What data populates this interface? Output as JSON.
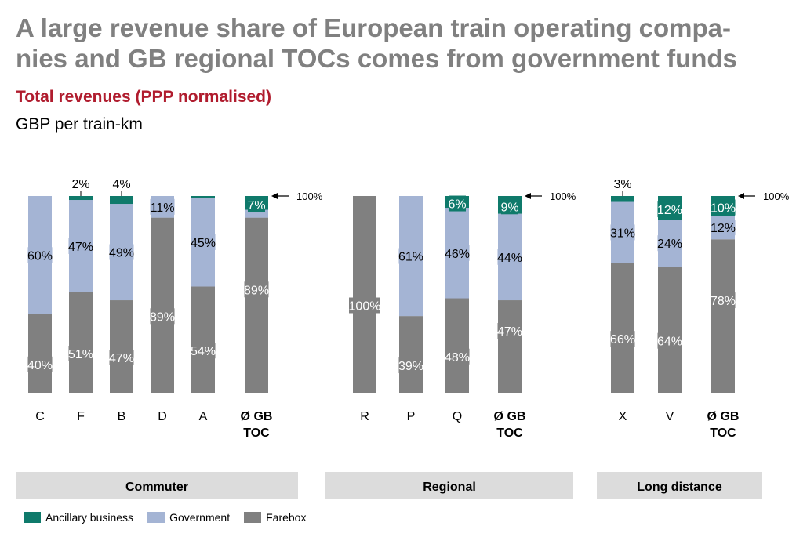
{
  "header": {
    "title": "A large revenue share of European train operating compa-nies and GB regional TOCs comes from government funds",
    "subtitle": "Total revenues (PPP normalised)",
    "unit": "GBP per train-km"
  },
  "colors": {
    "ancillary": "#0f7a6b",
    "government": "#a4b4d4",
    "farebox": "#808080"
  },
  "chart_data": {
    "type": "bar",
    "stacked": true,
    "percent": true,
    "series_order": [
      "Farebox",
      "Government",
      "Ancillary business"
    ],
    "groups": [
      {
        "name": "Commuter",
        "categories": [
          "C",
          "F",
          "B",
          "D",
          "A",
          "Ø GB TOC"
        ],
        "farebox": [
          40,
          51,
          47,
          89,
          54,
          89
        ],
        "government": [
          60,
          47,
          49,
          11,
          45,
          4
        ],
        "ancillary": [
          0,
          2,
          4,
          0,
          1,
          7
        ],
        "farebox_labels": [
          "40%",
          "51%",
          "47%",
          "89%",
          "54%",
          "89%"
        ],
        "government_labels": [
          "60%",
          "47%",
          "49%",
          "11%",
          "45%",
          ""
        ],
        "ancillary_labels": [
          "",
          "2%",
          "4%",
          "",
          "",
          "7%"
        ]
      },
      {
        "name": "Regional",
        "categories": [
          "R",
          "P",
          "Q",
          "Ø GB TOC"
        ],
        "farebox": [
          100,
          39,
          48,
          47
        ],
        "government": [
          0,
          61,
          46,
          44
        ],
        "ancillary": [
          0,
          0,
          6,
          9
        ],
        "farebox_labels": [
          "100%",
          "39%",
          "48%",
          "47%"
        ],
        "government_labels": [
          "",
          "61%",
          "46%",
          "44%"
        ],
        "ancillary_labels": [
          "",
          "",
          "6%",
          "9%"
        ]
      },
      {
        "name": "Long distance",
        "categories": [
          "X",
          "V",
          "Ø GB TOC"
        ],
        "farebox": [
          66,
          64,
          78
        ],
        "government": [
          31,
          24,
          12
        ],
        "ancillary": [
          3,
          12,
          10
        ],
        "farebox_labels": [
          "66%",
          "64%",
          "78%"
        ],
        "government_labels": [
          "31%",
          "24%",
          "12%"
        ],
        "ancillary_labels": [
          "3%",
          "12%",
          "10%"
        ]
      }
    ],
    "reference_label": "100%",
    "legend": [
      "Ancillary business",
      "Government",
      "Farebox"
    ]
  }
}
